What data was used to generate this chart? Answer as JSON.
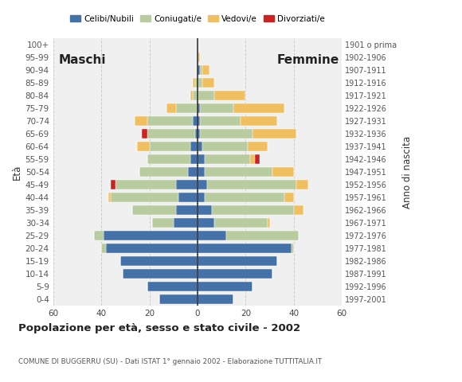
{
  "age_groups": [
    "0-4",
    "5-9",
    "10-14",
    "15-19",
    "20-24",
    "25-29",
    "30-34",
    "35-39",
    "40-44",
    "45-49",
    "50-54",
    "55-59",
    "60-64",
    "65-69",
    "70-74",
    "75-79",
    "80-84",
    "85-89",
    "90-94",
    "95-99",
    "100+"
  ],
  "birth_years": [
    "1997-2001",
    "1992-1996",
    "1987-1991",
    "1982-1986",
    "1977-1981",
    "1972-1976",
    "1967-1971",
    "1962-1966",
    "1957-1961",
    "1952-1956",
    "1947-1951",
    "1942-1946",
    "1937-1941",
    "1932-1936",
    "1927-1931",
    "1922-1926",
    "1917-1921",
    "1912-1916",
    "1907-1911",
    "1902-1906",
    "1901 o prima"
  ],
  "males_celibe": [
    16,
    21,
    31,
    32,
    38,
    39,
    10,
    9,
    8,
    9,
    4,
    3,
    3,
    1,
    2,
    0,
    0,
    0,
    0,
    0,
    0
  ],
  "males_coniugato": [
    0,
    0,
    0,
    0,
    2,
    4,
    9,
    18,
    28,
    25,
    20,
    18,
    17,
    20,
    19,
    9,
    2,
    1,
    0,
    0,
    0
  ],
  "males_vedovo": [
    0,
    0,
    0,
    0,
    0,
    0,
    0,
    0,
    1,
    0,
    0,
    0,
    5,
    0,
    5,
    4,
    1,
    1,
    0,
    0,
    0
  ],
  "males_divorziato": [
    0,
    0,
    0,
    0,
    0,
    0,
    0,
    0,
    0,
    2,
    0,
    0,
    0,
    2,
    0,
    0,
    0,
    0,
    0,
    0,
    0
  ],
  "females_nubile": [
    15,
    23,
    31,
    33,
    39,
    12,
    7,
    6,
    3,
    4,
    3,
    3,
    2,
    1,
    1,
    1,
    0,
    0,
    1,
    0,
    0
  ],
  "females_coniugata": [
    0,
    0,
    0,
    0,
    1,
    30,
    22,
    34,
    33,
    37,
    28,
    19,
    19,
    22,
    17,
    14,
    7,
    2,
    1,
    0,
    0
  ],
  "females_vedova": [
    0,
    0,
    0,
    0,
    0,
    0,
    1,
    4,
    4,
    5,
    9,
    2,
    8,
    18,
    15,
    21,
    13,
    5,
    3,
    1,
    0
  ],
  "females_divorziata": [
    0,
    0,
    0,
    0,
    0,
    0,
    0,
    0,
    0,
    0,
    0,
    2,
    0,
    0,
    0,
    0,
    0,
    0,
    0,
    0,
    0
  ],
  "color_celibe": "#4472a8",
  "color_coniugato": "#b8cca0",
  "color_vedovo": "#f0c060",
  "color_divorziato": "#cc2222",
  "xlim": 60,
  "title": "Popolazione per età, sesso e stato civile - 2002",
  "subtitle": "COMUNE DI BUGGERRU (SU) - Dati ISTAT 1° gennaio 2002 - Elaborazione TUTTITALIA.IT",
  "ylabel_left": "Età",
  "ylabel_right": "Anno di nascita",
  "label_maschi": "Maschi",
  "label_femmine": "Femmine",
  "legend_labels": [
    "Celibi/Nubili",
    "Coniugati/e",
    "Vedovi/e",
    "Divorziati/e"
  ],
  "bg_color": "#ffffff",
  "plot_bg_color": "#f0f0f0"
}
